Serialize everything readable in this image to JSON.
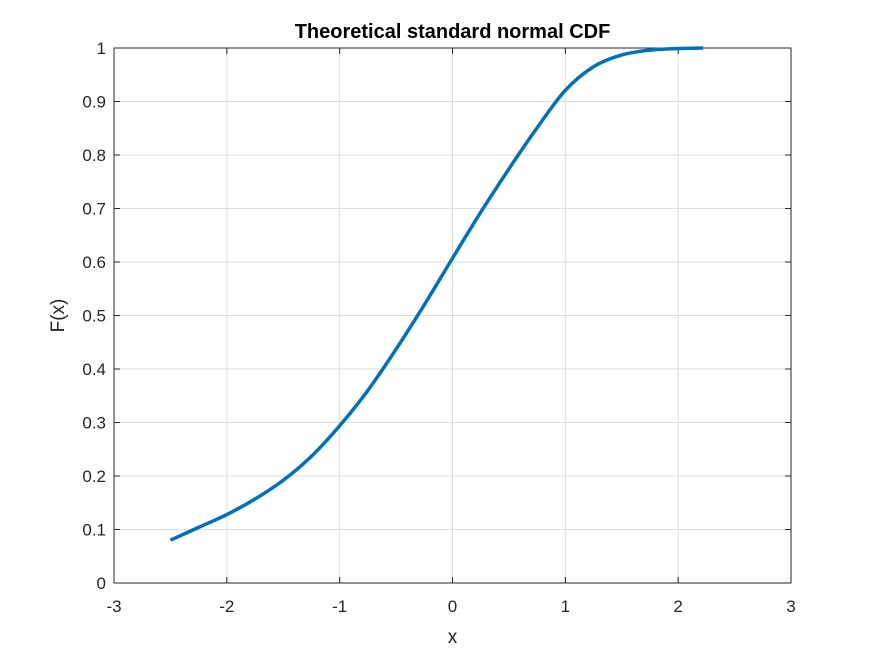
{
  "chart_data": {
    "type": "line",
    "title": "Theoretical standard normal CDF",
    "xlabel": "x",
    "ylabel": "F(x)",
    "xlim": [
      -3,
      3
    ],
    "ylim": [
      0,
      1
    ],
    "xticks": [
      -3,
      -2,
      -1,
      0,
      1,
      2,
      3
    ],
    "xtick_labels": [
      "-3",
      "-2",
      "-1",
      "0",
      "1",
      "2",
      "3"
    ],
    "yticks": [
      0,
      0.1,
      0.2,
      0.3,
      0.4,
      0.5,
      0.6,
      0.7,
      0.8,
      0.9,
      1
    ],
    "ytick_labels": [
      "0",
      "0.1",
      "0.2",
      "0.3",
      "0.4",
      "0.5",
      "0.6",
      "0.7",
      "0.8",
      "0.9",
      "1"
    ],
    "grid": true,
    "series": [
      {
        "color": "#0072BD",
        "x": [
          -2.5,
          -2.25,
          -2.0,
          -1.75,
          -1.5,
          -1.25,
          -1.0,
          -0.75,
          -0.5,
          -0.25,
          0.0,
          0.25,
          0.5,
          0.75,
          1.0,
          1.25,
          1.5,
          1.75,
          2.0,
          2.22
        ],
        "y": [
          0.08,
          0.104,
          0.128,
          0.157,
          0.192,
          0.237,
          0.294,
          0.36,
          0.437,
          0.52,
          0.607,
          0.693,
          0.774,
          0.851,
          0.921,
          0.965,
          0.987,
          0.996,
          0.999,
          1.0
        ]
      }
    ]
  }
}
